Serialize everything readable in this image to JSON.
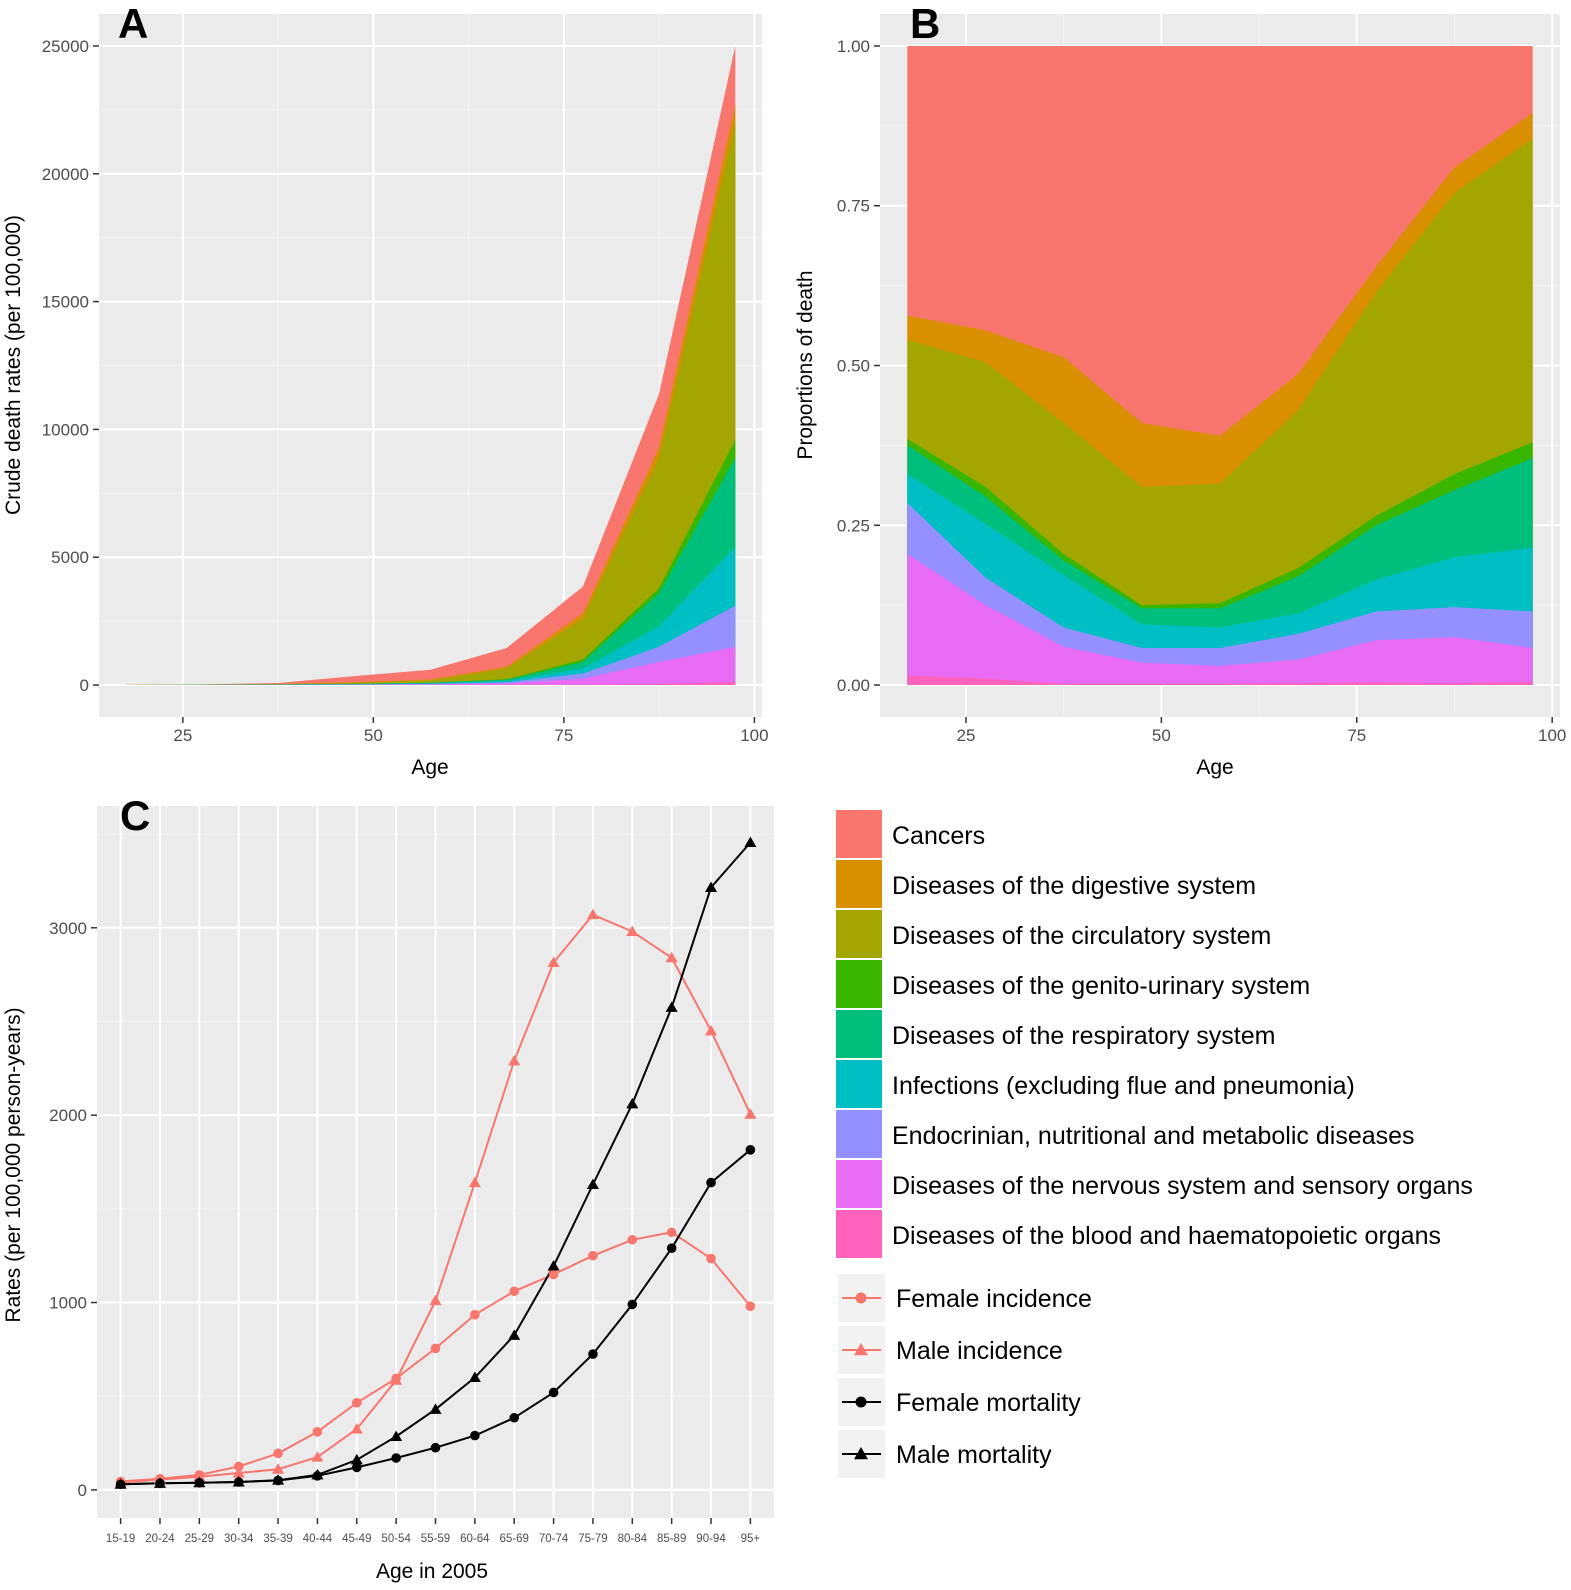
{
  "panels": {
    "A": {
      "letter": "A"
    },
    "B": {
      "letter": "B"
    },
    "C": {
      "letter": "C"
    }
  },
  "categories": [
    {
      "name": "Cancers",
      "color": "#F8766D"
    },
    {
      "name": "Diseases of the digestive system",
      "color": "#D89000"
    },
    {
      "name": "Diseases of the circulatory system",
      "color": "#A3A500"
    },
    {
      "name": "Diseases of the genito-urinary system",
      "color": "#39B600"
    },
    {
      "name": "Diseases of the respiratory system",
      "color": "#00BF7D"
    },
    {
      "name": "Infections (excluding flue and pneumonia)",
      "color": "#00BFC4"
    },
    {
      "name": "Endocrinian, nutritional and metabolic diseases",
      "color": "#9590FF"
    },
    {
      "name": "Diseases of the nervous system and sensory organs",
      "color": "#E76BF3"
    },
    {
      "name": "Diseases of the blood and haematopoietic organs",
      "color": "#FF62BC"
    }
  ],
  "chart_data": [
    {
      "type": "area",
      "panel": "A",
      "title": "",
      "xlabel": "Age",
      "ylabel": "Crude death rates (per 100,000)",
      "xlim": [
        14,
        101
      ],
      "ylim": [
        -1250,
        26250
      ],
      "xticks": [
        25,
        50,
        75,
        100
      ],
      "yticks": [
        0,
        5000,
        10000,
        15000,
        20000,
        25000
      ],
      "x": [
        17.5,
        27.5,
        37.5,
        47.5,
        57.5,
        67.5,
        77.5,
        87.5,
        97.5
      ],
      "stacked_cumulative_from_bottom": [
        {
          "name": "Diseases of the blood and haematopoietic organs",
          "values": [
            0,
            0,
            0,
            0,
            0,
            5,
            15,
            40,
            120
          ]
        },
        {
          "name": "Diseases of the nervous system and sensory organs",
          "values": [
            1,
            2,
            4,
            10,
            25,
            60,
            250,
            900,
            1500
          ]
        },
        {
          "name": "Endocrinian, nutritional and metabolic diseases",
          "values": [
            2,
            4,
            8,
            20,
            45,
            110,
            450,
            1500,
            3100
          ]
        },
        {
          "name": "Infections (excluding flue and pneumonia)",
          "values": [
            3,
            6,
            15,
            35,
            70,
            160,
            650,
            2300,
            5400
          ]
        },
        {
          "name": "Diseases of the respiratory system",
          "values": [
            4,
            8,
            20,
            45,
            90,
            210,
            900,
            3600,
            8900
          ]
        },
        {
          "name": "Diseases of the genito-urinary system",
          "values": [
            4,
            9,
            22,
            48,
            95,
            230,
            1000,
            3800,
            9600
          ]
        },
        {
          "name": "Diseases of the circulatory system",
          "values": [
            5,
            12,
            35,
            90,
            180,
            650,
            2600,
            8900,
            22000
          ]
        },
        {
          "name": "Diseases of the digestive system",
          "values": [
            6,
            14,
            42,
            110,
            215,
            720,
            2800,
            9300,
            22700
          ]
        },
        {
          "name": "Cancers",
          "values": [
            10,
            25,
            80,
            350,
            600,
            1450,
            3850,
            11400,
            25000
          ]
        }
      ]
    },
    {
      "type": "area",
      "panel": "B",
      "title": "",
      "xlabel": "Age",
      "ylabel": "Proportions of death",
      "xlim": [
        14,
        101
      ],
      "ylim": [
        -0.05,
        1.05
      ],
      "xticks": [
        25,
        50,
        75,
        100
      ],
      "yticks": [
        0.0,
        0.25,
        0.5,
        0.75,
        1.0
      ],
      "ytick_labels": [
        "0.00",
        "0.25",
        "0.50",
        "0.75",
        "1.00"
      ],
      "x": [
        17.5,
        27.5,
        37.5,
        47.5,
        57.5,
        67.5,
        77.5,
        87.5,
        97.5
      ],
      "stacked_cumulative_from_bottom": [
        {
          "name": "Diseases of the blood and haematopoietic organs",
          "values": [
            0.015,
            0.01,
            0.002,
            0.002,
            0.002,
            0.003,
            0.004,
            0.003,
            0.005
          ]
        },
        {
          "name": "Diseases of the nervous system and sensory organs",
          "values": [
            0.205,
            0.125,
            0.06,
            0.035,
            0.03,
            0.04,
            0.07,
            0.075,
            0.058
          ]
        },
        {
          "name": "Endocrinian, nutritional and metabolic diseases",
          "values": [
            0.285,
            0.168,
            0.09,
            0.058,
            0.058,
            0.08,
            0.115,
            0.122,
            0.115
          ]
        },
        {
          "name": "Infections (excluding flue and pneumonia)",
          "values": [
            0.33,
            0.252,
            0.172,
            0.095,
            0.09,
            0.112,
            0.165,
            0.2,
            0.215
          ]
        },
        {
          "name": "Diseases of the respiratory system",
          "values": [
            0.375,
            0.295,
            0.195,
            0.12,
            0.12,
            0.17,
            0.25,
            0.305,
            0.355
          ]
        },
        {
          "name": "Diseases of the genito-urinary system",
          "values": [
            0.385,
            0.31,
            0.205,
            0.125,
            0.128,
            0.183,
            0.265,
            0.33,
            0.38
          ]
        },
        {
          "name": "Diseases of the circulatory system",
          "values": [
            0.54,
            0.505,
            0.41,
            0.31,
            0.315,
            0.43,
            0.615,
            0.77,
            0.855
          ]
        },
        {
          "name": "Diseases of the digestive system",
          "values": [
            0.578,
            0.555,
            0.513,
            0.41,
            0.39,
            0.487,
            0.655,
            0.81,
            0.895
          ]
        },
        {
          "name": "Cancers",
          "values": [
            1.0,
            1.0,
            1.0,
            1.0,
            1.0,
            1.0,
            1.0,
            1.0,
            1.0
          ]
        }
      ]
    },
    {
      "type": "line",
      "panel": "C",
      "title": "",
      "xlabel": "Age in 2005",
      "ylabel": "Rates (per 100,000 person-years)",
      "ylim": [
        -150,
        3650
      ],
      "yticks": [
        0,
        1000,
        2000,
        3000
      ],
      "categories": [
        "15-19",
        "20-24",
        "25-29",
        "30-34",
        "35-39",
        "40-44",
        "45-49",
        "50-54",
        "55-59",
        "60-64",
        "65-69",
        "70-74",
        "75-79",
        "80-84",
        "85-89",
        "90-94",
        "95+"
      ],
      "series": [
        {
          "name": "Female incidence",
          "color": "#F8766D",
          "marker": "circle",
          "values": [
            45,
            60,
            80,
            125,
            195,
            310,
            465,
            595,
            755,
            935,
            1060,
            1150,
            1250,
            1335,
            1375,
            1235,
            980
          ]
        },
        {
          "name": "Male incidence",
          "color": "#F8766D",
          "marker": "triangle",
          "values": [
            40,
            55,
            70,
            90,
            110,
            175,
            325,
            585,
            1010,
            1640,
            2290,
            2815,
            3070,
            2980,
            2840,
            2450,
            2005
          ]
        },
        {
          "name": "Female mortality",
          "color": "#000000",
          "marker": "circle",
          "values": [
            30,
            35,
            38,
            42,
            50,
            75,
            120,
            170,
            225,
            290,
            385,
            520,
            725,
            990,
            1290,
            1640,
            1815
          ]
        },
        {
          "name": "Male mortality",
          "color": "#000000",
          "marker": "triangle",
          "values": [
            30,
            35,
            38,
            42,
            52,
            80,
            160,
            285,
            430,
            600,
            825,
            1195,
            1630,
            2060,
            2575,
            3215,
            3455
          ]
        }
      ]
    }
  ]
}
